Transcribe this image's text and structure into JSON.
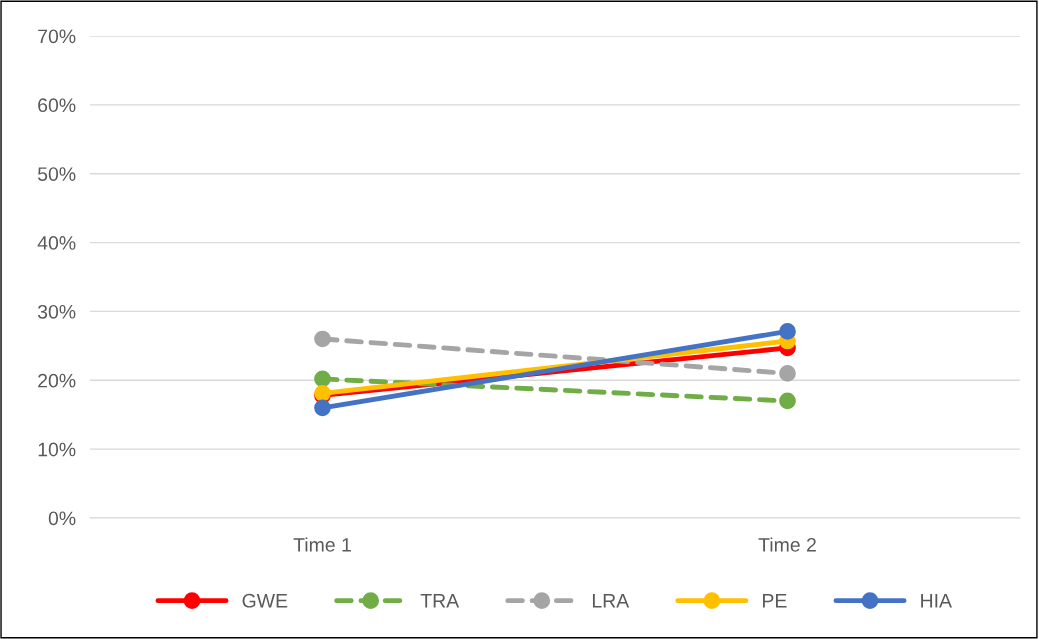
{
  "chart_data": {
    "type": "line",
    "categories": [
      "Time 1",
      "Time 2"
    ],
    "series": [
      {
        "name": "GWE",
        "color": "#ff0000",
        "values": [
          17.8,
          24.7
        ],
        "line_style": "solid"
      },
      {
        "name": "TRA",
        "color": "#70ad47",
        "values": [
          20.2,
          17.0
        ],
        "line_style": "dashed"
      },
      {
        "name": "LRA",
        "color": "#a5a5a5",
        "values": [
          26.0,
          21.0
        ],
        "line_style": "dashed"
      },
      {
        "name": "PE",
        "color": "#ffc000",
        "values": [
          18.1,
          25.7
        ],
        "line_style": "solid"
      },
      {
        "name": "HIA",
        "color": "#4472c4",
        "values": [
          16.0,
          27.1
        ],
        "line_style": "solid"
      }
    ],
    "ylim": [
      0,
      70
    ],
    "yticks": [
      {
        "value": 0,
        "label": "0%"
      },
      {
        "value": 10,
        "label": "10%"
      },
      {
        "value": 20,
        "label": "20%"
      },
      {
        "value": 30,
        "label": "30%"
      },
      {
        "value": 40,
        "label": "40%"
      },
      {
        "value": 50,
        "label": "50%"
      },
      {
        "value": 60,
        "label": "60%"
      },
      {
        "value": 70,
        "label": "70%"
      }
    ],
    "grid": "y",
    "legend": "bottom",
    "marker": "circle"
  }
}
